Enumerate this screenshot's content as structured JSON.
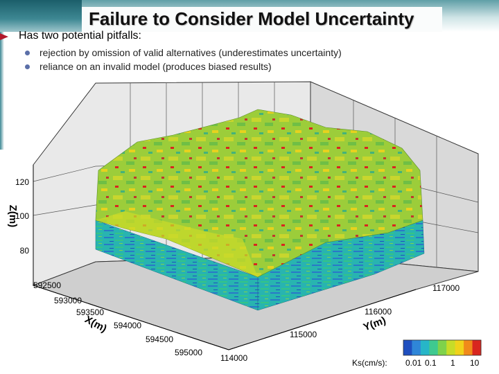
{
  "slide": {
    "title": "Failure to Consider Model Uncertainty",
    "bullet": "Has two potential pitfalls:",
    "subbullets": [
      "rejection by omission of valid alternatives (underestimates uncertainty)",
      "reliance on an invalid model (produces biased results)"
    ]
  },
  "chart_data": {
    "type": "3d-surface",
    "x_axis": {
      "label": "X(m)",
      "ticks": [
        "592500",
        "593000",
        "593500",
        "594000",
        "594500",
        "595000"
      ]
    },
    "y_axis": {
      "label": "Y(m)",
      "ticks": [
        "114000",
        "115000",
        "116000",
        "117000"
      ]
    },
    "z_axis": {
      "label": "Z(m)",
      "ticks": [
        "80",
        "100",
        "120"
      ]
    },
    "colorbar": {
      "label": "Ks(cm/s):",
      "ticks": [
        "0.01",
        "0.1",
        "1",
        "10"
      ],
      "colors": [
        "#1f4fbf",
        "#2f86d8",
        "#27b6c8",
        "#3fc990",
        "#7fd24b",
        "#c7dc28",
        "#f0d21a",
        "#f08a1a",
        "#d8261f"
      ]
    }
  }
}
